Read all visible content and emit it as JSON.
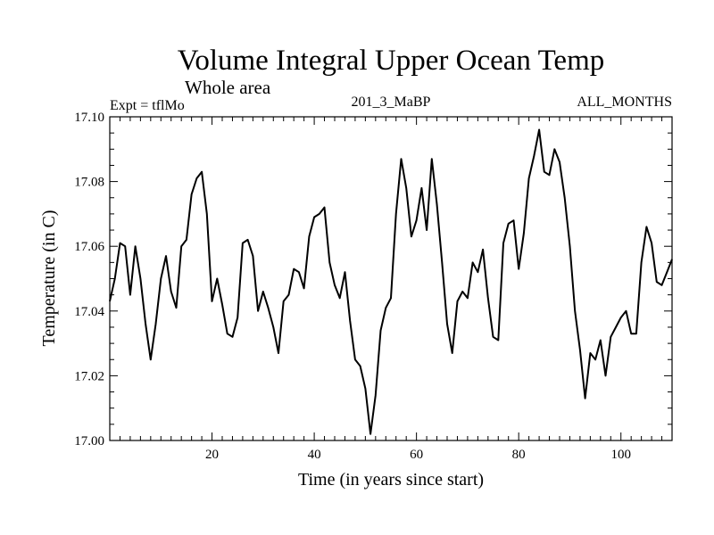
{
  "chart_data": {
    "type": "line",
    "title": "Volume Integral Upper Ocean Temp",
    "subtitle": "Whole area",
    "experiment_label": "Expt = tflMo",
    "run_label": "201_3_MaBP",
    "months_label": "ALL_MONTHS",
    "xlabel": "Time (in years since start)",
    "ylabel": "Temperature (in C)",
    "xlim": [
      0,
      110
    ],
    "ylim": [
      17.0,
      17.1
    ],
    "xticks": [
      20,
      40,
      60,
      80,
      100
    ],
    "xtick_labels": [
      "20",
      "40",
      "60",
      "80",
      "100"
    ],
    "yticks": [
      17.0,
      17.02,
      17.04,
      17.06,
      17.08,
      17.1
    ],
    "ytick_labels": [
      "17.00",
      "17.02",
      "17.04",
      "17.06",
      "17.08",
      "17.10"
    ],
    "series": [
      {
        "name": "Temperature",
        "x": [
          0,
          1,
          2,
          3,
          4,
          5,
          6,
          7,
          8,
          9,
          10,
          11,
          12,
          13,
          14,
          15,
          16,
          17,
          18,
          19,
          20,
          21,
          22,
          23,
          24,
          25,
          26,
          27,
          28,
          29,
          30,
          31,
          32,
          33,
          34,
          35,
          36,
          37,
          38,
          39,
          40,
          41,
          42,
          43,
          44,
          45,
          46,
          47,
          48,
          49,
          50,
          51,
          52,
          53,
          54,
          55,
          56,
          57,
          58,
          59,
          60,
          61,
          62,
          63,
          64,
          65,
          66,
          67,
          68,
          69,
          70,
          71,
          72,
          73,
          74,
          75,
          76,
          77,
          78,
          79,
          80,
          81,
          82,
          83,
          84,
          85,
          86,
          87,
          88,
          89,
          90,
          91,
          92,
          93,
          94,
          95,
          96,
          97,
          98,
          99,
          100,
          101,
          102,
          103,
          104,
          105,
          106,
          107,
          108,
          109,
          110
        ],
        "values": [
          17.043,
          17.05,
          17.061,
          17.06,
          17.045,
          17.06,
          17.05,
          17.036,
          17.025,
          17.036,
          17.05,
          17.057,
          17.046,
          17.041,
          17.06,
          17.062,
          17.076,
          17.081,
          17.083,
          17.07,
          17.043,
          17.05,
          17.042,
          17.033,
          17.032,
          17.038,
          17.061,
          17.062,
          17.057,
          17.04,
          17.046,
          17.041,
          17.035,
          17.027,
          17.043,
          17.045,
          17.053,
          17.052,
          17.047,
          17.063,
          17.069,
          17.07,
          17.072,
          17.055,
          17.048,
          17.044,
          17.052,
          17.037,
          17.025,
          17.023,
          17.016,
          17.002,
          17.014,
          17.034,
          17.041,
          17.044,
          17.07,
          17.087,
          17.078,
          17.063,
          17.068,
          17.078,
          17.065,
          17.087,
          17.073,
          17.055,
          17.036,
          17.027,
          17.043,
          17.046,
          17.044,
          17.055,
          17.052,
          17.059,
          17.044,
          17.032,
          17.031,
          17.061,
          17.067,
          17.068,
          17.053,
          17.064,
          17.081,
          17.088,
          17.096,
          17.083,
          17.082,
          17.09,
          17.086,
          17.075,
          17.06,
          17.04,
          17.028,
          17.013,
          17.027,
          17.025,
          17.031,
          17.02,
          17.032,
          17.035,
          17.038,
          17.04,
          17.033,
          17.033,
          17.055,
          17.066,
          17.061,
          17.049,
          17.048,
          17.052,
          17.056
        ]
      }
    ]
  }
}
